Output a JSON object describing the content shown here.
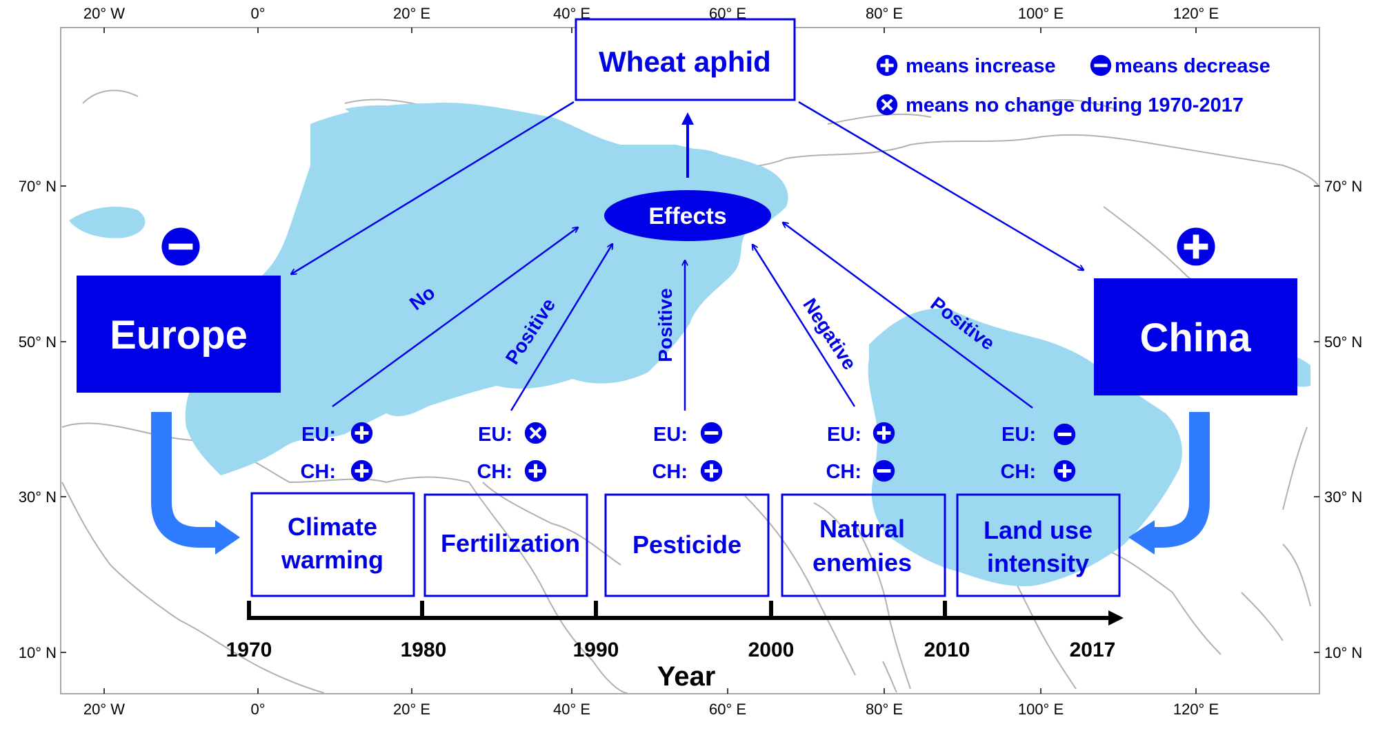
{
  "colors": {
    "primary_blue": "#0000e6",
    "land_blue": "#9cd9f1",
    "arrow_blue": "#2f7bff",
    "outline_gray": "#a8a8a8",
    "text_black": "#000000"
  },
  "map": {
    "lon_ticks": [
      "20° W",
      "0°",
      "20° E",
      "40° E",
      "60° E",
      "80° E",
      "100° E",
      "120° E"
    ],
    "lat_ticks": [
      "70° N",
      "50° N",
      "30° N",
      "10° N"
    ]
  },
  "title": "Wheat aphid",
  "legend": [
    {
      "icon": "plus-circle-icon",
      "text": "means increase"
    },
    {
      "icon": "minus-circle-icon",
      "text": "means decrease"
    },
    {
      "icon": "cross-circle-icon",
      "text": "means no change during 1970-2017"
    }
  ],
  "effects_label": "Effects",
  "regions": [
    {
      "name": "Europe",
      "trend_icon": "minus-circle-icon"
    },
    {
      "name": "China",
      "trend_icon": "plus-circle-icon"
    }
  ],
  "effect_labels": [
    "No",
    "Positive",
    "Positive",
    "Negative",
    "Positive"
  ],
  "factors": [
    {
      "lines": [
        "Climate",
        "warming"
      ],
      "eu_label": "EU:",
      "eu_icon": "plus-circle-icon",
      "ch_label": "CH:",
      "ch_icon": "plus-circle-icon"
    },
    {
      "lines": [
        "Fertilization"
      ],
      "eu_label": "EU:",
      "eu_icon": "cross-circle-icon",
      "ch_label": "CH:",
      "ch_icon": "plus-circle-icon"
    },
    {
      "lines": [
        "Pesticide"
      ],
      "eu_label": "EU:",
      "eu_icon": "minus-circle-icon",
      "ch_label": "CH:",
      "ch_icon": "plus-circle-icon"
    },
    {
      "lines": [
        "Natural",
        "enemies"
      ],
      "eu_label": "EU:",
      "eu_icon": "plus-circle-icon",
      "ch_label": "CH:",
      "ch_icon": "minus-circle-icon"
    },
    {
      "lines": [
        "Land use",
        "intensity"
      ],
      "eu_label": "EU:",
      "eu_icon": "minus-circle-icon",
      "ch_label": "CH:",
      "ch_icon": "plus-circle-icon"
    }
  ],
  "timeline": {
    "years": [
      "1970",
      "1980",
      "1990",
      "2000",
      "2010",
      "2017"
    ],
    "axis_label": "Year"
  }
}
